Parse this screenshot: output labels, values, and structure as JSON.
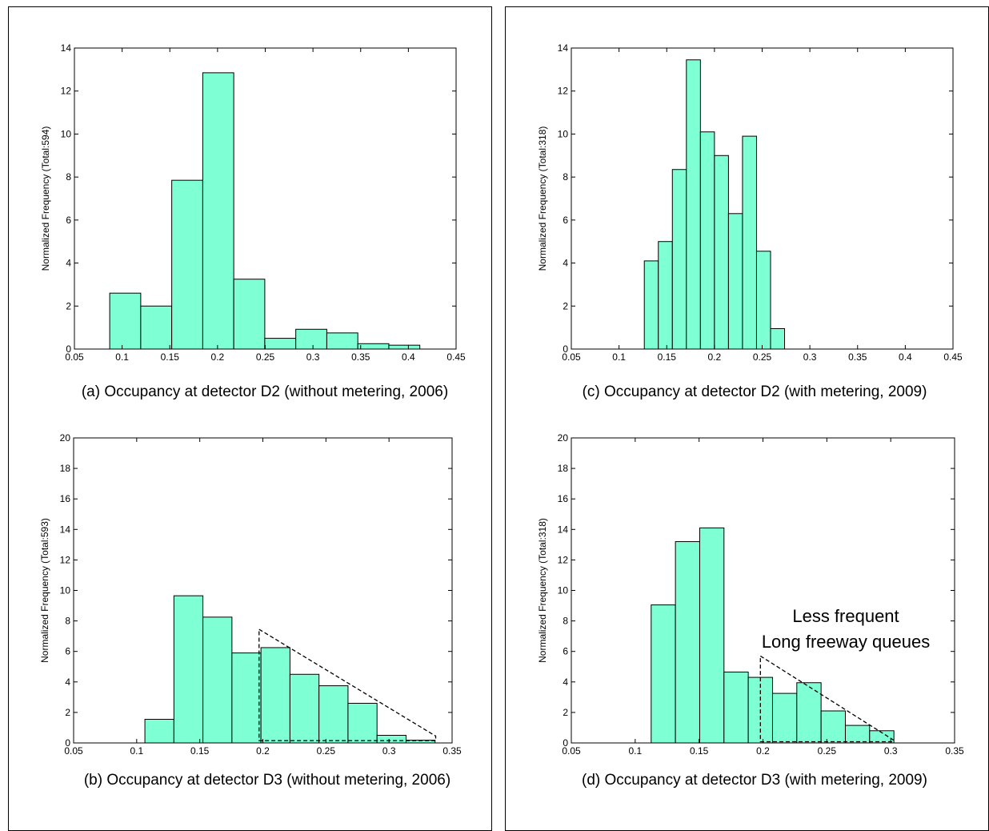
{
  "colors": {
    "bar_fill": "#7fffd4",
    "bar_stroke": "#000000",
    "axis": "#000000"
  },
  "chart_data": [
    {
      "id": "a",
      "type": "bar",
      "caption": "(a) Occupancy at detector D2 (without metering, 2006)",
      "ylabel": "Normalized Frequency (Total:594)",
      "xlim": [
        0.05,
        0.45
      ],
      "ylim": [
        0,
        14
      ],
      "xticks": [
        "0.05",
        "0.1",
        "0.15",
        "0.2",
        "0.25",
        "0.3",
        "0.35",
        "0.4",
        "0.45"
      ],
      "yticks": [
        "0",
        "2",
        "4",
        "6",
        "8",
        "10",
        "12",
        "14"
      ],
      "bins": [
        {
          "x0": 0.087,
          "x1": 0.1195,
          "value": 2.6
        },
        {
          "x0": 0.1195,
          "x1": 0.152,
          "value": 2.0
        },
        {
          "x0": 0.152,
          "x1": 0.1845,
          "value": 7.85
        },
        {
          "x0": 0.1845,
          "x1": 0.217,
          "value": 12.85
        },
        {
          "x0": 0.217,
          "x1": 0.2495,
          "value": 3.25
        },
        {
          "x0": 0.2495,
          "x1": 0.282,
          "value": 0.5
        },
        {
          "x0": 0.282,
          "x1": 0.3145,
          "value": 0.92
        },
        {
          "x0": 0.3145,
          "x1": 0.347,
          "value": 0.75
        },
        {
          "x0": 0.347,
          "x1": 0.3795,
          "value": 0.25
        },
        {
          "x0": 0.3795,
          "x1": 0.412,
          "value": 0.18
        }
      ]
    },
    {
      "id": "b",
      "type": "bar",
      "caption": "(b) Occupancy at detector D3 (without metering, 2006)",
      "ylabel": "Normalized Frequency (Total:593)",
      "xlim": [
        0.05,
        0.35
      ],
      "ylim": [
        0,
        20
      ],
      "xticks": [
        "0.05",
        "0.1",
        "0.15",
        "0.2",
        "0.25",
        "0.3",
        "0.35"
      ],
      "yticks": [
        "0",
        "2",
        "4",
        "6",
        "8",
        "10",
        "12",
        "14",
        "16",
        "18",
        "20"
      ],
      "bins": [
        {
          "x0": 0.1065,
          "x1": 0.1295,
          "value": 1.55
        },
        {
          "x0": 0.1295,
          "x1": 0.1525,
          "value": 9.65
        },
        {
          "x0": 0.1525,
          "x1": 0.1755,
          "value": 8.25
        },
        {
          "x0": 0.1755,
          "x1": 0.1985,
          "value": 5.9
        },
        {
          "x0": 0.1985,
          "x1": 0.2215,
          "value": 6.25
        },
        {
          "x0": 0.2215,
          "x1": 0.2445,
          "value": 4.5
        },
        {
          "x0": 0.2445,
          "x1": 0.2675,
          "value": 3.75
        },
        {
          "x0": 0.2675,
          "x1": 0.2905,
          "value": 2.6
        },
        {
          "x0": 0.2905,
          "x1": 0.3135,
          "value": 0.5
        },
        {
          "x0": 0.3135,
          "x1": 0.3365,
          "value": 0.18
        }
      ],
      "dashed_outline": [
        [
          0.197,
          7.45
        ],
        [
          0.337,
          0.45
        ],
        [
          0.337,
          0.15
        ],
        [
          0.197,
          0.15
        ],
        [
          0.197,
          7.45
        ]
      ]
    },
    {
      "id": "c",
      "type": "bar",
      "caption": "(c) Occupancy at detector D2 (with metering, 2009)",
      "ylabel": "Normalized Frequency (Total:318)",
      "xlim": [
        0.05,
        0.45
      ],
      "ylim": [
        0,
        14
      ],
      "xticks": [
        "0.05",
        "0.1",
        "0.15",
        "0.2",
        "0.25",
        "0.3",
        "0.35",
        "0.4",
        "0.45"
      ],
      "yticks": [
        "0",
        "2",
        "4",
        "6",
        "8",
        "10",
        "12",
        "14"
      ],
      "bins": [
        {
          "x0": 0.1265,
          "x1": 0.1412,
          "value": 4.1
        },
        {
          "x0": 0.1412,
          "x1": 0.1559,
          "value": 5.0
        },
        {
          "x0": 0.1559,
          "x1": 0.1706,
          "value": 8.35
        },
        {
          "x0": 0.1706,
          "x1": 0.1853,
          "value": 13.45
        },
        {
          "x0": 0.1853,
          "x1": 0.2,
          "value": 10.1
        },
        {
          "x0": 0.2,
          "x1": 0.2147,
          "value": 9.0
        },
        {
          "x0": 0.2147,
          "x1": 0.2294,
          "value": 6.3
        },
        {
          "x0": 0.2294,
          "x1": 0.2441,
          "value": 9.9
        },
        {
          "x0": 0.2441,
          "x1": 0.2588,
          "value": 4.55
        },
        {
          "x0": 0.2588,
          "x1": 0.2735,
          "value": 0.95
        }
      ]
    },
    {
      "id": "d",
      "type": "bar",
      "caption": "(d) Occupancy at detector D3 (with metering, 2009)",
      "ylabel": "Normalized Frequency (Total:318)",
      "xlim": [
        0.05,
        0.35
      ],
      "ylim": [
        0,
        20
      ],
      "xticks": [
        "0.05",
        "0.1",
        "0.15",
        "0.2",
        "0.25",
        "0.3",
        "0.35"
      ],
      "yticks": [
        "0",
        "2",
        "4",
        "6",
        "8",
        "10",
        "12",
        "14",
        "16",
        "18",
        "20"
      ],
      "bins": [
        {
          "x0": 0.1125,
          "x1": 0.1315,
          "value": 9.05
        },
        {
          "x0": 0.1315,
          "x1": 0.1505,
          "value": 13.2
        },
        {
          "x0": 0.1505,
          "x1": 0.1695,
          "value": 14.1
        },
        {
          "x0": 0.1695,
          "x1": 0.1885,
          "value": 4.65
        },
        {
          "x0": 0.1885,
          "x1": 0.2075,
          "value": 4.3
        },
        {
          "x0": 0.2075,
          "x1": 0.2265,
          "value": 3.25
        },
        {
          "x0": 0.2265,
          "x1": 0.2455,
          "value": 3.95
        },
        {
          "x0": 0.2455,
          "x1": 0.2645,
          "value": 2.1
        },
        {
          "x0": 0.2645,
          "x1": 0.2835,
          "value": 1.15
        },
        {
          "x0": 0.2835,
          "x1": 0.3025,
          "value": 0.8
        }
      ],
      "dashed_outline": [
        [
          0.198,
          5.7
        ],
        [
          0.302,
          0.2
        ],
        [
          0.302,
          0.08
        ],
        [
          0.198,
          0.08
        ],
        [
          0.198,
          5.7
        ]
      ],
      "annotation": [
        "Less frequent",
        "Long freeway queues"
      ]
    }
  ]
}
